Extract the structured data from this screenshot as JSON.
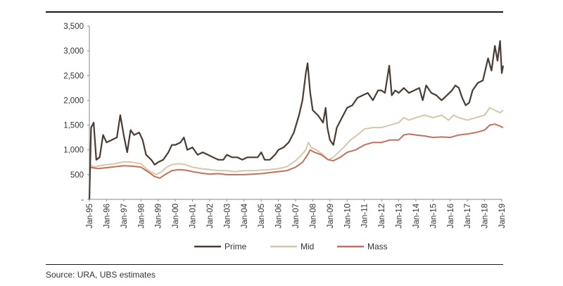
{
  "source_note": "Source:  URA, UBS estimates",
  "chart_data": {
    "type": "line",
    "title": "",
    "xlabel": "",
    "ylabel": "",
    "ylim": [
      0,
      3500
    ],
    "y_ticks": [
      0,
      500,
      1000,
      1500,
      2000,
      2500,
      3000,
      3500
    ],
    "y_tick_labels": [
      "-",
      "500",
      "1,000",
      "1,500",
      "2,000",
      "2,500",
      "3,000",
      "3,500"
    ],
    "x_range": [
      1995.0,
      2019.0
    ],
    "x_tick_labels": [
      "Jan-95",
      "Jan-96",
      "Jan-97",
      "Jan-98",
      "Jan-99",
      "Jan-00",
      "Jan-01",
      "Jan-02",
      "Jan-03",
      "Jan-04",
      "Jan-05",
      "Jan-06",
      "Jan-07",
      "Jan-08",
      "Jan-09",
      "Jan-10",
      "Jan-11",
      "Jan-12",
      "Jan-13",
      "Jan-14",
      "Jan-15",
      "Jan-16",
      "Jan-17",
      "Jan-18",
      "Jan-19"
    ],
    "x_tick_years": [
      1995,
      1996,
      1997,
      1998,
      1999,
      2000,
      2001,
      2002,
      2003,
      2004,
      2005,
      2006,
      2007,
      2008,
      2009,
      2010,
      2011,
      2012,
      2013,
      2014,
      2015,
      2016,
      2017,
      2018,
      2019
    ],
    "grid": false,
    "legend_position": "bottom",
    "series": [
      {
        "name": "Prime",
        "color": "#4a3c33",
        "points": [
          [
            1995.0,
            0
          ],
          [
            1995.1,
            1450
          ],
          [
            1995.25,
            1550
          ],
          [
            1995.4,
            800
          ],
          [
            1995.6,
            850
          ],
          [
            1995.8,
            1300
          ],
          [
            1996.0,
            1150
          ],
          [
            1996.3,
            1200
          ],
          [
            1996.6,
            1250
          ],
          [
            1996.8,
            1700
          ],
          [
            1997.0,
            1300
          ],
          [
            1997.2,
            950
          ],
          [
            1997.4,
            1400
          ],
          [
            1997.6,
            1300
          ],
          [
            1997.9,
            1350
          ],
          [
            1998.1,
            1200
          ],
          [
            1998.3,
            900
          ],
          [
            1998.6,
            800
          ],
          [
            1998.8,
            700
          ],
          [
            1999.0,
            750
          ],
          [
            1999.3,
            800
          ],
          [
            1999.6,
            950
          ],
          [
            1999.8,
            1100
          ],
          [
            2000.0,
            1100
          ],
          [
            2000.3,
            1150
          ],
          [
            2000.5,
            1250
          ],
          [
            2000.7,
            1000
          ],
          [
            2001.0,
            1050
          ],
          [
            2001.3,
            900
          ],
          [
            2001.6,
            950
          ],
          [
            2001.9,
            900
          ],
          [
            2002.2,
            850
          ],
          [
            2002.5,
            800
          ],
          [
            2002.8,
            800
          ],
          [
            2003.0,
            900
          ],
          [
            2003.3,
            850
          ],
          [
            2003.6,
            850
          ],
          [
            2003.9,
            800
          ],
          [
            2004.2,
            850
          ],
          [
            2004.5,
            850
          ],
          [
            2004.8,
            850
          ],
          [
            2005.0,
            950
          ],
          [
            2005.2,
            800
          ],
          [
            2005.5,
            800
          ],
          [
            2005.8,
            900
          ],
          [
            2006.0,
            1000
          ],
          [
            2006.3,
            1050
          ],
          [
            2006.6,
            1150
          ],
          [
            2006.9,
            1350
          ],
          [
            2007.2,
            1700
          ],
          [
            2007.4,
            2000
          ],
          [
            2007.6,
            2550
          ],
          [
            2007.7,
            2750
          ],
          [
            2007.85,
            2150
          ],
          [
            2008.0,
            1800
          ],
          [
            2008.3,
            1700
          ],
          [
            2008.6,
            1550
          ],
          [
            2008.75,
            1850
          ],
          [
            2008.85,
            1450
          ],
          [
            2009.0,
            1200
          ],
          [
            2009.2,
            1100
          ],
          [
            2009.4,
            1450
          ],
          [
            2009.7,
            1650
          ],
          [
            2010.0,
            1850
          ],
          [
            2010.3,
            1900
          ],
          [
            2010.6,
            2050
          ],
          [
            2010.9,
            2100
          ],
          [
            2011.2,
            2150
          ],
          [
            2011.5,
            2000
          ],
          [
            2011.8,
            2200
          ],
          [
            2012.0,
            2200
          ],
          [
            2012.2,
            2150
          ],
          [
            2012.45,
            2700
          ],
          [
            2012.6,
            2100
          ],
          [
            2012.8,
            2200
          ],
          [
            2013.0,
            2150
          ],
          [
            2013.3,
            2250
          ],
          [
            2013.6,
            2150
          ],
          [
            2013.9,
            2200
          ],
          [
            2014.2,
            2250
          ],
          [
            2014.4,
            2000
          ],
          [
            2014.6,
            2300
          ],
          [
            2014.9,
            2150
          ],
          [
            2015.2,
            2100
          ],
          [
            2015.5,
            2000
          ],
          [
            2015.8,
            2100
          ],
          [
            2016.1,
            2200
          ],
          [
            2016.3,
            2300
          ],
          [
            2016.5,
            2250
          ],
          [
            2016.7,
            2050
          ],
          [
            2016.9,
            1900
          ],
          [
            2017.1,
            1950
          ],
          [
            2017.3,
            2200
          ],
          [
            2017.6,
            2350
          ],
          [
            2017.9,
            2400
          ],
          [
            2018.0,
            2550
          ],
          [
            2018.2,
            2850
          ],
          [
            2018.4,
            2600
          ],
          [
            2018.6,
            3100
          ],
          [
            2018.75,
            2800
          ],
          [
            2018.9,
            3200
          ],
          [
            2019.0,
            2550
          ],
          [
            2019.08,
            2700
          ]
        ]
      },
      {
        "name": "Mid",
        "color": "#d8c6ab",
        "points": [
          [
            1995.0,
            700
          ],
          [
            1995.3,
            650
          ],
          [
            1995.6,
            680
          ],
          [
            1996.0,
            700
          ],
          [
            1996.5,
            720
          ],
          [
            1997.0,
            760
          ],
          [
            1997.5,
            750
          ],
          [
            1998.0,
            720
          ],
          [
            1998.3,
            620
          ],
          [
            1998.6,
            550
          ],
          [
            1998.9,
            500
          ],
          [
            1999.2,
            560
          ],
          [
            1999.5,
            650
          ],
          [
            1999.8,
            700
          ],
          [
            2000.2,
            720
          ],
          [
            2000.6,
            700
          ],
          [
            2001.0,
            650
          ],
          [
            2001.5,
            620
          ],
          [
            2002.0,
            600
          ],
          [
            2002.5,
            580
          ],
          [
            2003.0,
            580
          ],
          [
            2003.5,
            560
          ],
          [
            2004.0,
            580
          ],
          [
            2004.5,
            580
          ],
          [
            2005.0,
            590
          ],
          [
            2005.5,
            600
          ],
          [
            2006.0,
            620
          ],
          [
            2006.5,
            660
          ],
          [
            2007.0,
            780
          ],
          [
            2007.3,
            880
          ],
          [
            2007.6,
            1000
          ],
          [
            2007.75,
            1150
          ],
          [
            2007.9,
            1050
          ],
          [
            2008.2,
            1000
          ],
          [
            2008.6,
            900
          ],
          [
            2008.9,
            800
          ],
          [
            2009.2,
            850
          ],
          [
            2009.5,
            950
          ],
          [
            2009.8,
            1050
          ],
          [
            2010.2,
            1200
          ],
          [
            2010.6,
            1300
          ],
          [
            2011.0,
            1420
          ],
          [
            2011.5,
            1450
          ],
          [
            2012.0,
            1450
          ],
          [
            2012.5,
            1500
          ],
          [
            2013.0,
            1550
          ],
          [
            2013.3,
            1650
          ],
          [
            2013.6,
            1600
          ],
          [
            2014.0,
            1650
          ],
          [
            2014.5,
            1700
          ],
          [
            2015.0,
            1650
          ],
          [
            2015.5,
            1700
          ],
          [
            2015.9,
            1600
          ],
          [
            2016.2,
            1700
          ],
          [
            2016.5,
            1650
          ],
          [
            2017.0,
            1600
          ],
          [
            2017.5,
            1650
          ],
          [
            2018.0,
            1700
          ],
          [
            2018.3,
            1850
          ],
          [
            2018.6,
            1800
          ],
          [
            2018.9,
            1750
          ],
          [
            2019.08,
            1800
          ]
        ]
      },
      {
        "name": "Mass",
        "color": "#c4705a",
        "points": [
          [
            1995.0,
            650
          ],
          [
            1995.5,
            620
          ],
          [
            1996.0,
            640
          ],
          [
            1996.5,
            660
          ],
          [
            1997.0,
            680
          ],
          [
            1997.5,
            670
          ],
          [
            1998.0,
            650
          ],
          [
            1998.4,
            560
          ],
          [
            1998.8,
            460
          ],
          [
            1999.1,
            430
          ],
          [
            1999.4,
            500
          ],
          [
            1999.8,
            580
          ],
          [
            2000.2,
            600
          ],
          [
            2000.6,
            590
          ],
          [
            2001.0,
            560
          ],
          [
            2001.5,
            530
          ],
          [
            2002.0,
            510
          ],
          [
            2002.5,
            520
          ],
          [
            2003.0,
            500
          ],
          [
            2003.5,
            500
          ],
          [
            2004.0,
            500
          ],
          [
            2004.5,
            510
          ],
          [
            2005.0,
            520
          ],
          [
            2005.5,
            540
          ],
          [
            2006.0,
            560
          ],
          [
            2006.5,
            580
          ],
          [
            2007.0,
            650
          ],
          [
            2007.4,
            750
          ],
          [
            2007.7,
            900
          ],
          [
            2007.85,
            1000
          ],
          [
            2008.1,
            950
          ],
          [
            2008.5,
            900
          ],
          [
            2008.9,
            800
          ],
          [
            2009.2,
            780
          ],
          [
            2009.6,
            850
          ],
          [
            2010.0,
            950
          ],
          [
            2010.5,
            1000
          ],
          [
            2011.0,
            1100
          ],
          [
            2011.5,
            1150
          ],
          [
            2012.0,
            1150
          ],
          [
            2012.5,
            1200
          ],
          [
            2013.0,
            1200
          ],
          [
            2013.3,
            1300
          ],
          [
            2013.6,
            1320
          ],
          [
            2014.0,
            1300
          ],
          [
            2014.5,
            1280
          ],
          [
            2015.0,
            1250
          ],
          [
            2015.5,
            1260
          ],
          [
            2016.0,
            1250
          ],
          [
            2016.5,
            1300
          ],
          [
            2017.0,
            1320
          ],
          [
            2017.5,
            1350
          ],
          [
            2018.0,
            1400
          ],
          [
            2018.3,
            1500
          ],
          [
            2018.6,
            1520
          ],
          [
            2018.9,
            1480
          ],
          [
            2019.08,
            1450
          ]
        ]
      }
    ]
  }
}
